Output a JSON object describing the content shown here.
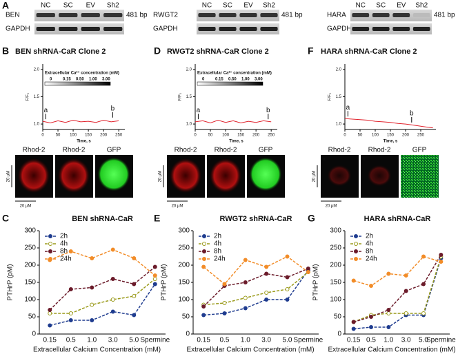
{
  "gels": {
    "panel": "A",
    "blots": [
      {
        "gene": "BEN",
        "control": "GAPDH",
        "lanes": [
          "NC",
          "SC",
          "EV",
          "Sh2"
        ],
        "size": "481 bp"
      },
      {
        "gene": "RWGT2",
        "control": "GAPDH",
        "lanes": [
          "NC",
          "SC",
          "EV",
          "Sh2"
        ],
        "size": "481 bp"
      },
      {
        "gene": "HARA",
        "control": "GAPDH",
        "lanes": [
          "NC",
          "SC",
          "EV",
          "Sh2"
        ],
        "size": "481 bp"
      }
    ]
  },
  "chart_data": [
    {
      "type": "line",
      "panel": "B",
      "title": "BEN shRNA-CaR Clone 2",
      "x_label": "Time, s",
      "y_label": "F/F₀",
      "x": [
        0,
        25,
        50,
        75,
        100,
        125,
        150,
        175,
        200,
        225,
        250
      ],
      "values": [
        1.05,
        1.02,
        1.06,
        1.03,
        1.07,
        1.04,
        1.05,
        1.03,
        1.07,
        1.04,
        1.06
      ],
      "color": "#e0202a",
      "xlim": [
        0,
        270
      ],
      "ylim": [
        0.9,
        2.1
      ],
      "xticks": [
        0,
        50,
        100,
        150,
        200,
        250
      ],
      "yticks": [
        {
          "value": 1,
          "label": "1.0"
        },
        1.5,
        {
          "value": 2,
          "label": "2.0"
        }
      ],
      "inset": {
        "title": "Extracellular Ca²⁺ concentration (mM)",
        "labels": [
          "0",
          "0.15",
          "0.50",
          "1.00",
          "3.00"
        ]
      },
      "annotations": [
        {
          "text": "a",
          "x": 10,
          "y": 1.05
        },
        {
          "text": "b",
          "x": 230,
          "y": 1.08
        }
      ],
      "images": {
        "labels": [
          "Rhod-2",
          "Rhod-2",
          "GFP"
        ],
        "corner_labels": [
          "a",
          "b"
        ],
        "scale_label": "20 µM"
      }
    },
    {
      "type": "line",
      "panel": "D",
      "title": "RWGT2 shRNA-CaR Clone 2",
      "x_label": "Time, s",
      "y_label": "F/F₀",
      "x": [
        0,
        25,
        50,
        75,
        100,
        125,
        150,
        175,
        200,
        225,
        250
      ],
      "values": [
        1.04,
        1.06,
        1.02,
        1.07,
        1.03,
        1.06,
        1.02,
        1.05,
        1.03,
        1.06,
        1.04
      ],
      "color": "#e0202a",
      "xlim": [
        0,
        270
      ],
      "ylim": [
        0.9,
        2.1
      ],
      "xticks": [
        0,
        50,
        100,
        150,
        200,
        250
      ],
      "yticks": [
        {
          "value": 1,
          "label": "1.0"
        },
        1.5,
        {
          "value": 2,
          "label": "2.0"
        }
      ],
      "inset": {
        "title": "Extracellular Ca²⁺ concentration (mM)",
        "labels": [
          "0",
          "0.15",
          "0.50",
          "1.00",
          "3.00"
        ]
      },
      "annotations": [
        {
          "text": "a",
          "x": 10,
          "y": 1.05
        },
        {
          "text": "b",
          "x": 240,
          "y": 1.05
        }
      ],
      "images": {
        "labels": [
          "Rhod-2",
          "Rhod-2",
          "GFP"
        ],
        "corner_labels": [
          "a",
          "b"
        ],
        "scale_label": "20 µM"
      }
    },
    {
      "type": "line",
      "panel": "F",
      "title": "HARA shRNA-CaR Clone 2",
      "x_label": "Time, s",
      "y_label": "F/F₀",
      "x": [
        0,
        25,
        50,
        75,
        100,
        125,
        150,
        175,
        200,
        225,
        250,
        275,
        290
      ],
      "values": [
        1.1,
        1.09,
        1.08,
        1.07,
        1.05,
        1.04,
        1.03,
        1.01,
        1.0,
        0.98,
        0.96,
        0.94,
        0.93
      ],
      "color": "#e0202a",
      "xlim": [
        0,
        300
      ],
      "ylim": [
        0.9,
        2.1
      ],
      "xticks": [
        0,
        50,
        100,
        150,
        200,
        250
      ],
      "yticks": [
        {
          "value": 1,
          "label": "1.0"
        },
        1.5,
        {
          "value": 2,
          "label": "2.0"
        }
      ],
      "annotations": [
        {
          "text": "a",
          "x": 10,
          "y": 1.1
        },
        {
          "text": "b",
          "x": 220,
          "y": 0.99
        }
      ],
      "images": {
        "labels": [
          "Rhod-2",
          "Rhod-2",
          "GFP"
        ],
        "corner_labels": [
          "a",
          "b"
        ],
        "scale_label": "20 µM"
      }
    },
    {
      "type": "line",
      "panel": "C",
      "title": "BEN shRNA-CaR",
      "x_label": "Extracellular Calcium Concentration (mM)",
      "y_label": "PTHrP (pM)",
      "categories": [
        "0.15",
        "0.5",
        "1.0",
        "3.0",
        "5.0",
        "Spermine"
      ],
      "ylim": [
        0,
        300
      ],
      "yticks": [
        0,
        50,
        100,
        150,
        200,
        250,
        300
      ],
      "series": [
        {
          "name": "2h",
          "color": "#1f3c8f",
          "values": [
            25,
            40,
            40,
            65,
            55,
            145
          ]
        },
        {
          "name": "4h",
          "color": "#9a9a1a",
          "values": [
            60,
            60,
            85,
            100,
            110,
            160
          ]
        },
        {
          "name": "8h",
          "color": "#6b1b2a",
          "values": [
            70,
            130,
            135,
            160,
            145,
            195
          ]
        },
        {
          "name": "24h",
          "color": "#f28c28",
          "values": [
            215,
            240,
            220,
            245,
            220,
            170
          ]
        }
      ]
    },
    {
      "type": "line",
      "panel": "E",
      "title": "RWGT2 shRNA-CaR",
      "x_label": "Extracellular Calcium Concentration (mM)",
      "y_label": "PTHrP (pM)",
      "categories": [
        "0.15",
        "0.5",
        "1.0",
        "3.0",
        "5.0",
        "Spermine"
      ],
      "ylim": [
        0,
        300
      ],
      "yticks": [
        0,
        50,
        100,
        150,
        200,
        250,
        300
      ],
      "series": [
        {
          "name": "2h",
          "color": "#1f3c8f",
          "values": [
            55,
            60,
            75,
            100,
            100,
            185
          ]
        },
        {
          "name": "4h",
          "color": "#9a9a1a",
          "values": [
            85,
            90,
            105,
            120,
            130,
            180
          ]
        },
        {
          "name": "8h",
          "color": "#6b1b2a",
          "values": [
            80,
            140,
            150,
            175,
            165,
            190
          ]
        },
        {
          "name": "24h",
          "color": "#f28c28",
          "values": [
            195,
            145,
            215,
            195,
            225,
            180
          ]
        }
      ]
    },
    {
      "type": "line",
      "panel": "G",
      "title": "HARA shRNA-CaR",
      "x_label": "Extracellular Calcium Concentration (mM)",
      "y_label": "PTHrP (pM)",
      "categories": [
        "0.15",
        "0.5",
        "1.0",
        "3.0",
        "5.0",
        "Spermine"
      ],
      "ylim": [
        0,
        300
      ],
      "yticks": [
        0,
        50,
        100,
        150,
        200,
        250,
        300
      ],
      "series": [
        {
          "name": "2h",
          "color": "#1f3c8f",
          "values": [
            15,
            20,
            20,
            55,
            55,
            220
          ]
        },
        {
          "name": "4h",
          "color": "#9a9a1a",
          "values": [
            35,
            55,
            60,
            60,
            60,
            225
          ]
        },
        {
          "name": "8h",
          "color": "#6b1b2a",
          "values": [
            35,
            50,
            70,
            125,
            145,
            230
          ]
        },
        {
          "name": "24h",
          "color": "#f28c28",
          "values": [
            155,
            140,
            175,
            170,
            225,
            210
          ]
        }
      ]
    }
  ]
}
